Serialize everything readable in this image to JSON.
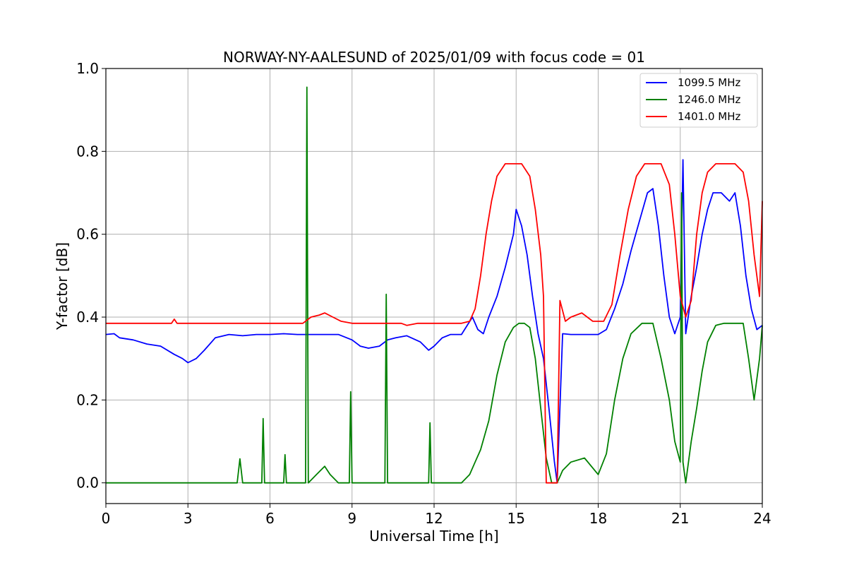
{
  "chart_data": {
    "type": "line",
    "title": "NORWAY-NY-AALESUND of 2025/01/09 with focus code = 01",
    "xlabel": "Universal Time [h]",
    "ylabel": "Y-factor [dB]",
    "xlim": [
      0,
      24
    ],
    "ylim": [
      -0.05,
      1.0
    ],
    "xticks": [
      0,
      3,
      6,
      9,
      12,
      15,
      18,
      21,
      24
    ],
    "xtick_labels": [
      "0",
      "3",
      "6",
      "9",
      "12",
      "15",
      "18",
      "21",
      "24"
    ],
    "yticks": [
      0.0,
      0.2,
      0.4,
      0.6,
      0.8,
      1.0
    ],
    "ytick_labels": [
      "0.0",
      "0.2",
      "0.4",
      "0.6",
      "0.8",
      "1.0"
    ],
    "grid": true,
    "legend_position": "top-right",
    "series": [
      {
        "name": "1099.5 MHz",
        "color": "#0000ff",
        "x": [
          0.0,
          0.3,
          0.5,
          1.0,
          1.5,
          2.0,
          2.5,
          2.8,
          3.0,
          3.3,
          3.6,
          4.0,
          4.5,
          5.0,
          5.5,
          6.0,
          6.5,
          7.0,
          7.5,
          8.0,
          8.5,
          9.0,
          9.3,
          9.6,
          10.0,
          10.3,
          10.6,
          11.0,
          11.5,
          11.8,
          12.0,
          12.3,
          12.6,
          13.0,
          13.4,
          13.6,
          13.8,
          14.0,
          14.3,
          14.6,
          14.9,
          15.0,
          15.2,
          15.4,
          15.6,
          15.8,
          16.0,
          16.2,
          16.4,
          16.5,
          16.7,
          17.0,
          17.5,
          18.0,
          18.3,
          18.6,
          18.9,
          19.2,
          19.5,
          19.8,
          20.0,
          20.2,
          20.4,
          20.6,
          20.8,
          21.0,
          21.1,
          21.2,
          21.4,
          21.6,
          21.8,
          22.0,
          22.2,
          22.5,
          22.8,
          23.0,
          23.2,
          23.4,
          23.6,
          23.8,
          24.0
        ],
        "y": [
          0.358,
          0.36,
          0.35,
          0.345,
          0.335,
          0.33,
          0.31,
          0.3,
          0.29,
          0.3,
          0.32,
          0.35,
          0.358,
          0.355,
          0.358,
          0.358,
          0.36,
          0.358,
          0.358,
          0.358,
          0.358,
          0.345,
          0.33,
          0.325,
          0.33,
          0.345,
          0.35,
          0.355,
          0.34,
          0.32,
          0.33,
          0.35,
          0.358,
          0.358,
          0.4,
          0.37,
          0.36,
          0.4,
          0.45,
          0.52,
          0.6,
          0.66,
          0.62,
          0.55,
          0.45,
          0.36,
          0.3,
          0.18,
          0.05,
          0.0,
          0.36,
          0.358,
          0.358,
          0.358,
          0.37,
          0.42,
          0.48,
          0.56,
          0.63,
          0.7,
          0.71,
          0.62,
          0.5,
          0.4,
          0.36,
          0.4,
          0.78,
          0.36,
          0.45,
          0.52,
          0.6,
          0.66,
          0.7,
          0.7,
          0.68,
          0.7,
          0.62,
          0.5,
          0.42,
          0.37,
          0.38
        ]
      },
      {
        "name": "1246.0 MHz",
        "color": "#008000",
        "x": [
          0.0,
          4.8,
          4.9,
          5.0,
          5.7,
          5.75,
          5.8,
          6.5,
          6.55,
          6.6,
          7.3,
          7.35,
          7.4,
          7.7,
          8.0,
          8.2,
          8.5,
          8.9,
          8.95,
          9.0,
          10.2,
          10.25,
          10.3,
          11.8,
          11.85,
          11.9,
          13.0,
          13.3,
          13.5,
          13.7,
          14.0,
          14.3,
          14.6,
          14.9,
          15.1,
          15.3,
          15.5,
          15.7,
          15.9,
          16.1,
          16.3,
          16.5,
          16.7,
          17.0,
          17.5,
          18.0,
          18.3,
          18.6,
          18.9,
          19.2,
          19.6,
          20.0,
          20.3,
          20.6,
          20.8,
          21.0,
          21.05,
          21.1,
          21.2,
          21.4,
          21.6,
          21.8,
          22.0,
          22.3,
          22.6,
          23.0,
          23.3,
          23.5,
          23.7,
          23.9,
          24.0
        ],
        "y": [
          0.0,
          0.0,
          0.058,
          0.0,
          0.0,
          0.155,
          0.0,
          0.0,
          0.068,
          0.0,
          0.0,
          0.955,
          0.0,
          0.02,
          0.04,
          0.02,
          0.0,
          0.0,
          0.22,
          0.0,
          0.0,
          0.455,
          0.0,
          0.0,
          0.145,
          0.0,
          0.0,
          0.02,
          0.05,
          0.08,
          0.15,
          0.26,
          0.34,
          0.375,
          0.385,
          0.385,
          0.375,
          0.3,
          0.18,
          0.06,
          0.0,
          0.0,
          0.03,
          0.05,
          0.06,
          0.02,
          0.07,
          0.2,
          0.3,
          0.36,
          0.385,
          0.385,
          0.3,
          0.2,
          0.1,
          0.05,
          0.7,
          0.05,
          0.0,
          0.1,
          0.18,
          0.27,
          0.34,
          0.38,
          0.385,
          0.385,
          0.385,
          0.3,
          0.2,
          0.3,
          0.38
        ]
      },
      {
        "name": "1401.0 MHz",
        "color": "#ff0000",
        "x": [
          0.0,
          2.4,
          2.5,
          2.6,
          7.2,
          7.5,
          7.8,
          8.0,
          8.3,
          8.6,
          9.0,
          10.8,
          11.0,
          11.4,
          12.0,
          13.0,
          13.3,
          13.5,
          13.7,
          13.9,
          14.1,
          14.3,
          14.6,
          14.9,
          15.2,
          15.5,
          15.7,
          15.9,
          16.0,
          16.1,
          16.3,
          16.4,
          16.5,
          16.6,
          16.8,
          17.0,
          17.4,
          17.8,
          18.2,
          18.5,
          18.8,
          19.1,
          19.4,
          19.7,
          20.0,
          20.3,
          20.6,
          20.8,
          21.0,
          21.2,
          21.4,
          21.6,
          21.8,
          22.0,
          22.3,
          22.6,
          23.0,
          23.3,
          23.5,
          23.7,
          23.9,
          24.0
        ],
        "y": [
          0.385,
          0.385,
          0.395,
          0.385,
          0.385,
          0.4,
          0.405,
          0.41,
          0.4,
          0.39,
          0.385,
          0.385,
          0.38,
          0.385,
          0.385,
          0.385,
          0.39,
          0.42,
          0.5,
          0.6,
          0.68,
          0.74,
          0.77,
          0.77,
          0.77,
          0.74,
          0.66,
          0.55,
          0.45,
          0.0,
          0.0,
          0.0,
          0.0,
          0.44,
          0.39,
          0.4,
          0.41,
          0.39,
          0.39,
          0.43,
          0.55,
          0.66,
          0.74,
          0.77,
          0.77,
          0.77,
          0.72,
          0.6,
          0.45,
          0.4,
          0.44,
          0.6,
          0.7,
          0.75,
          0.77,
          0.77,
          0.77,
          0.75,
          0.68,
          0.55,
          0.45,
          0.68
        ]
      }
    ]
  }
}
